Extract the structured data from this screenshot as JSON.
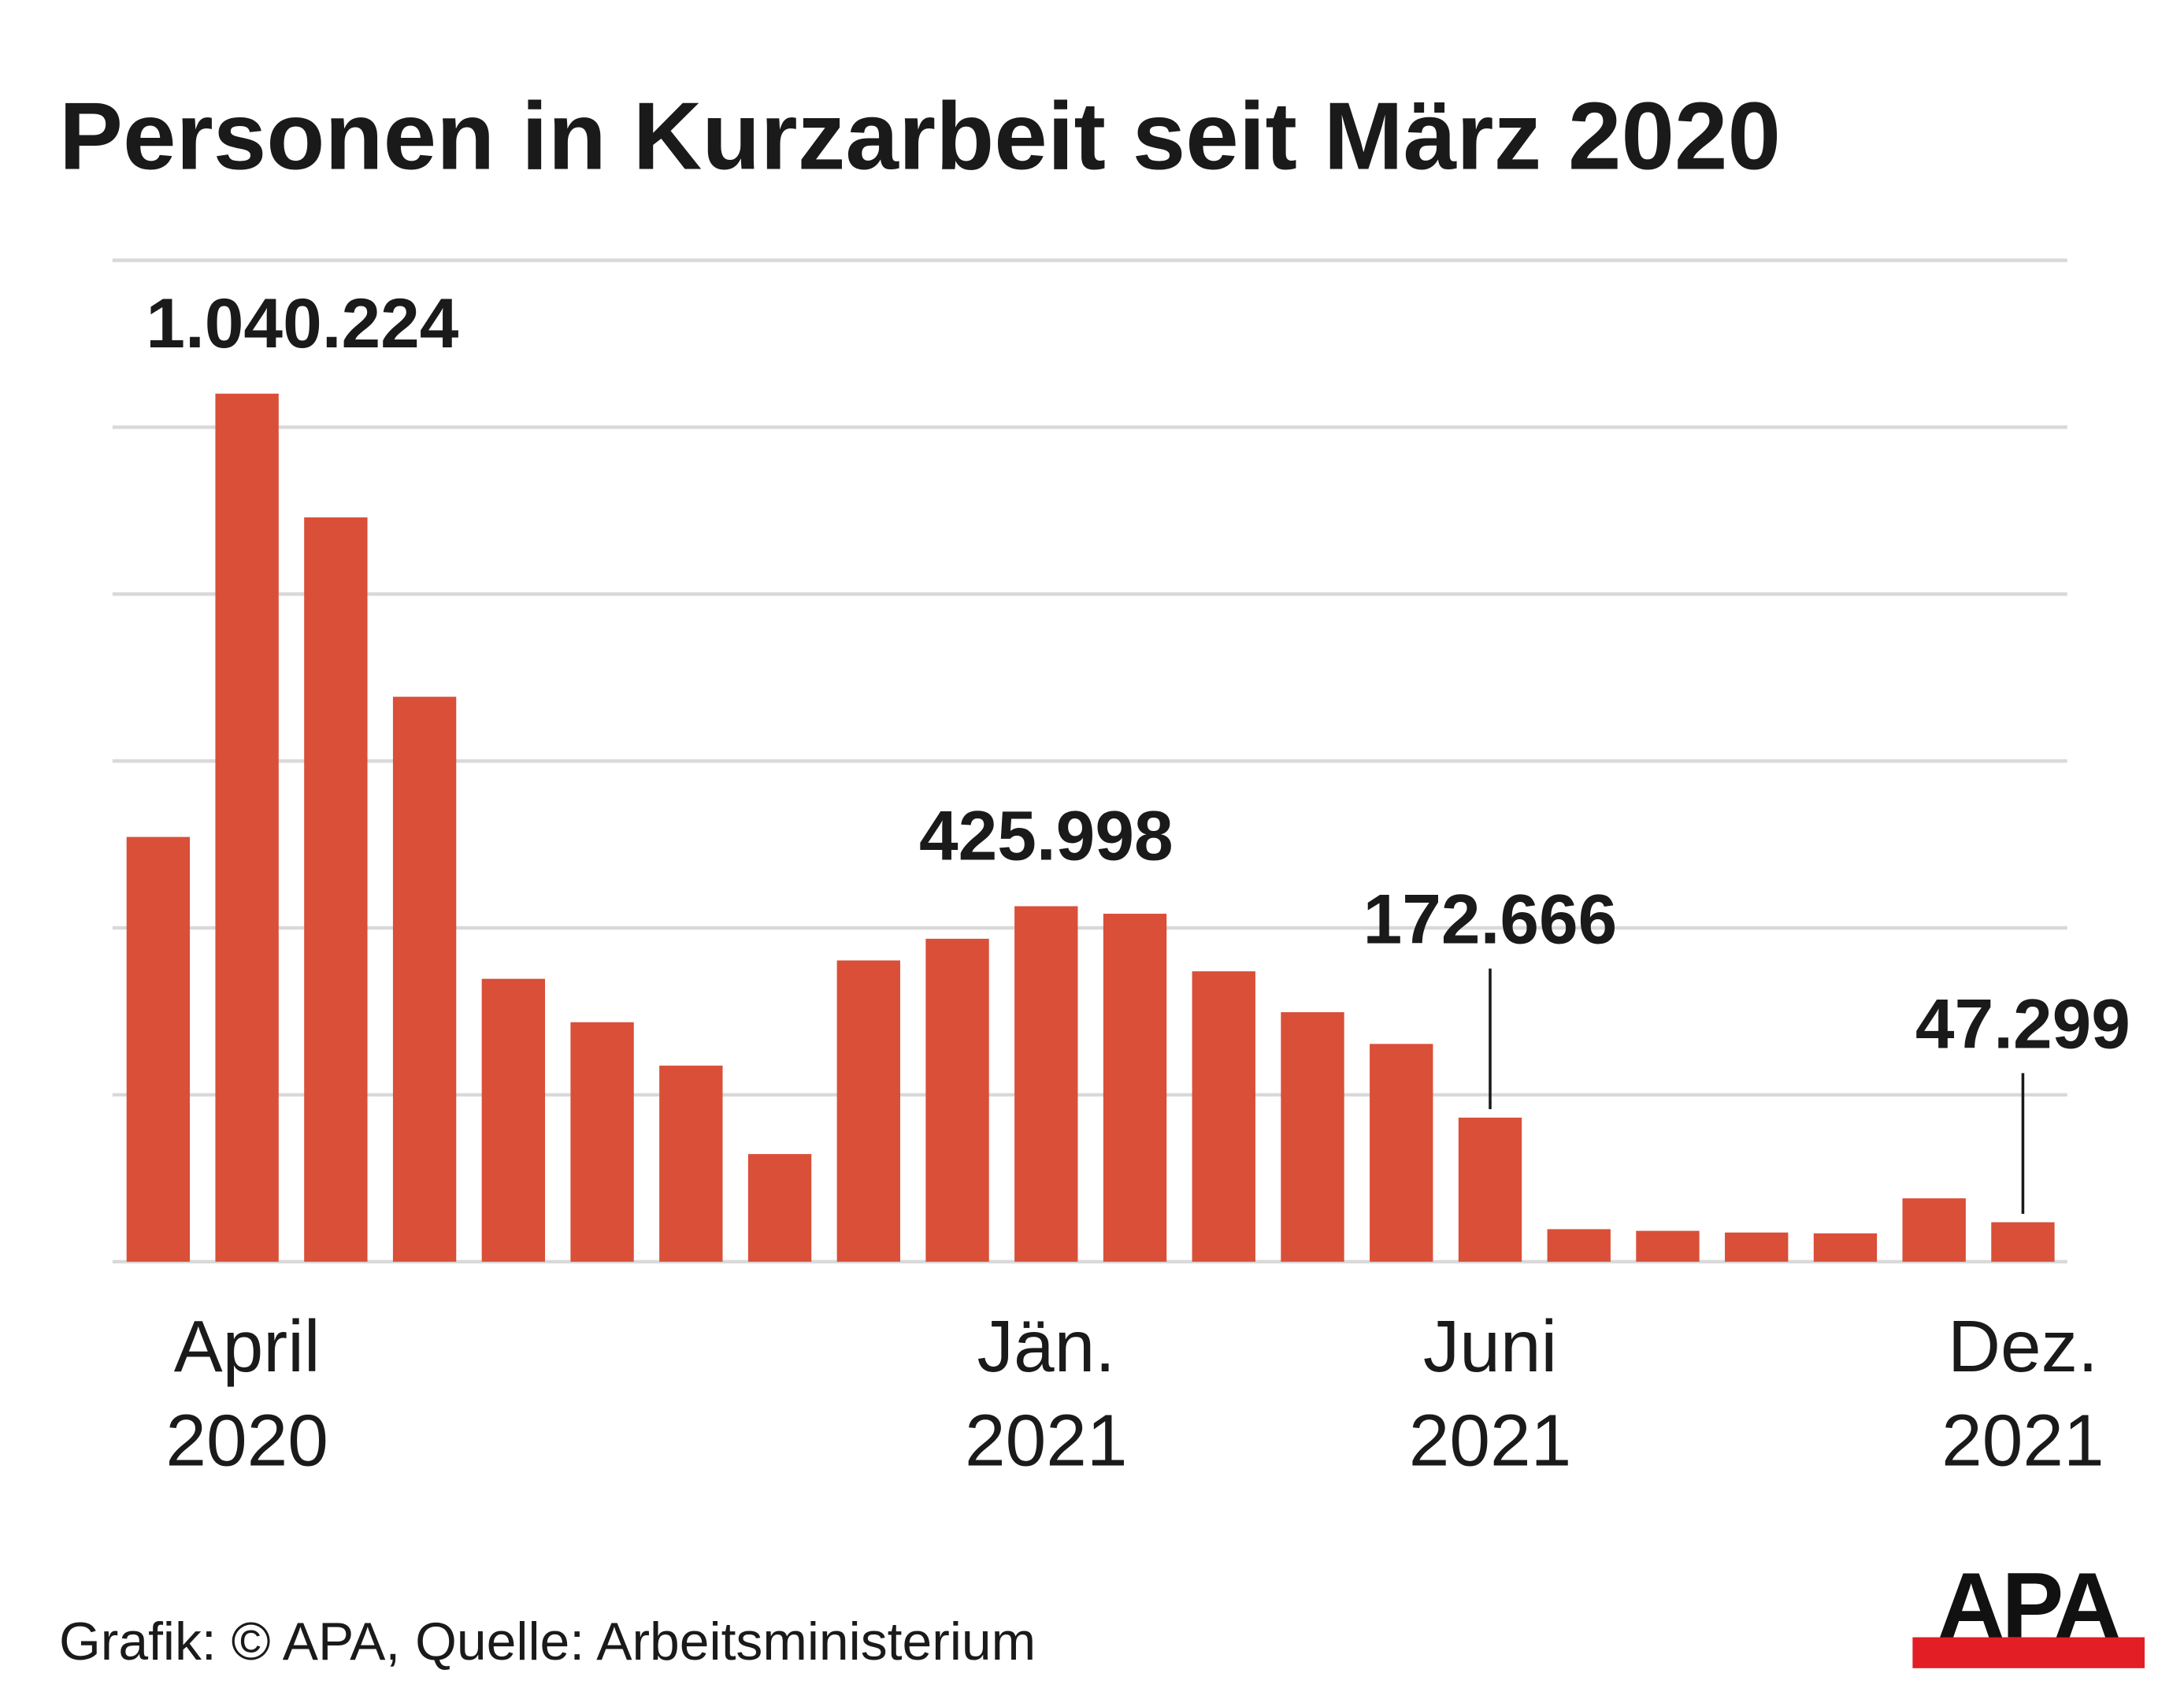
{
  "title": "Personen in Kurzarbeit seit März 2020",
  "footer": "Grafik: © APA, Quelle: Arbeitsministerium",
  "logo_text": "APA",
  "colors": {
    "bar": "#d94f38",
    "grid": "#d9d9d9",
    "text": "#1a1a1a",
    "logo_red": "#e31e24"
  },
  "chart_data": {
    "type": "bar",
    "title": "Personen in Kurzarbeit seit März 2020",
    "categories": [
      "2020-03",
      "2020-04",
      "2020-05",
      "2020-06",
      "2020-07",
      "2020-08",
      "2020-09",
      "2020-10",
      "2020-11",
      "2020-12",
      "2021-01",
      "2021-02",
      "2021-03",
      "2021-04",
      "2021-05",
      "2021-06",
      "2021-07",
      "2021-08",
      "2021-09",
      "2021-10",
      "2021-11",
      "2021-12"
    ],
    "values": [
      509000,
      1040224,
      892000,
      677000,
      339000,
      287000,
      235000,
      129000,
      361000,
      387000,
      425998,
      417000,
      348000,
      299000,
      261000,
      172666,
      39000,
      37000,
      35000,
      34000,
      76000,
      47299
    ],
    "ylim": [
      0,
      1200000
    ],
    "grid": true,
    "gridlines": [
      0,
      200000,
      400000,
      600000,
      800000,
      1000000,
      1200000
    ],
    "tick_labels": [
      {
        "index": 1,
        "line1": "April",
        "line2": "2020"
      },
      {
        "index": 10,
        "line1": "Jän.",
        "line2": "2021"
      },
      {
        "index": 15,
        "line1": "Juni",
        "line2": "2021"
      },
      {
        "index": 21,
        "line1": "Dez.",
        "line2": "2021"
      }
    ],
    "annotations": [
      {
        "index": 1,
        "text": "1.040.224",
        "leader": false
      },
      {
        "index": 10,
        "text": "425.998",
        "leader": false
      },
      {
        "index": 15,
        "text": "172.666",
        "leader": true
      },
      {
        "index": 21,
        "text": "47.299",
        "leader": true
      }
    ]
  }
}
